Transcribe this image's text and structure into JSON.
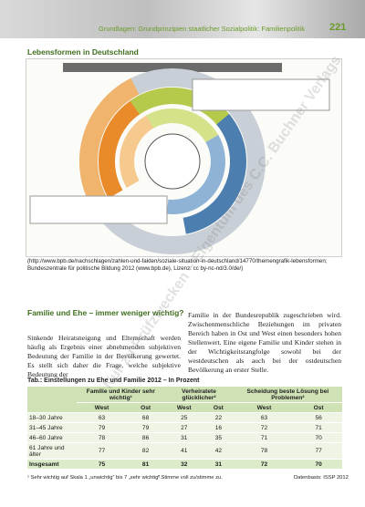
{
  "header": {
    "title": "Grundlagen: Grundprinzipien staatlicher Sozialpolitik: Familienpolitik",
    "page": "221"
  },
  "section_title": "Lebensformen in Deutschland",
  "figure_source": "(http://www.bpb.de/nachschlagen/zahlen-und-fakten/soziale-situation-in-deutschland/14770/themengrafik-lebensformen; Bundeszentrale für politische Bildung 2012 (www.bpb.de), Lizenz: cc by-nc-nd/3.0/de/)",
  "article": {
    "heading": "Familie und Ehe – immer weniger wichtig?",
    "column_1": "Sinkende Heiratsneigung und Elternschaft werden häufig als Ergebnis einer abnehmenden subjektiven Bedeutung der Familie in der Bevölkerung gewertet. Es stellt sich daher die Frage, welche subjektive Bedeutung der",
    "column_2": "Familie in der Bundesrepublik zugeschrieben wird. Zwischenmenschliche Beziehungen im privaten Bereich haben in Ost und West einen besonders hohen Stellenwert. Eine eigene Familie und Kinder stehen in der Wichtigkeitsrangfolge sowohl bei der westdeutschen als auch bei der ostdeutschen Bevölkerung an erster Stelle."
  },
  "table": {
    "caption": "Tab.: Einstellungen zu Ehe und Familie 2012 – In Prozent",
    "groups": [
      "Familie und Kinder sehr wichtig¹",
      "Verheiratete glücklicher²",
      "Scheidung beste Lösung bei Problemen²"
    ],
    "subheaders": [
      "West",
      "Ost",
      "West",
      "Ost",
      "West",
      "Ost"
    ],
    "rows": [
      [
        "18–30 Jahre",
        63,
        68,
        25,
        22,
        63,
        56
      ],
      [
        "31–45 Jahre",
        79,
        79,
        27,
        16,
        72,
        71
      ],
      [
        "46–60 Jahre",
        78,
        86,
        31,
        35,
        71,
        70
      ],
      [
        "61 Jahre und älter",
        77,
        82,
        41,
        42,
        78,
        77
      ],
      [
        "Insgesamt",
        75,
        81,
        32,
        31,
        72,
        70
      ]
    ],
    "footnotes": [
      "¹ Sehr wichtig auf Skala 1 „unwichtig“ bis 7 „sehr wichtig“.",
      "² Stimme voll zu/stimme zu."
    ],
    "data_source": "Datenbasis: ISSP 2012"
  },
  "watermark": "Nur zu Prüfzwecken – Eigentum des C.C. Buchner Verlags"
}
